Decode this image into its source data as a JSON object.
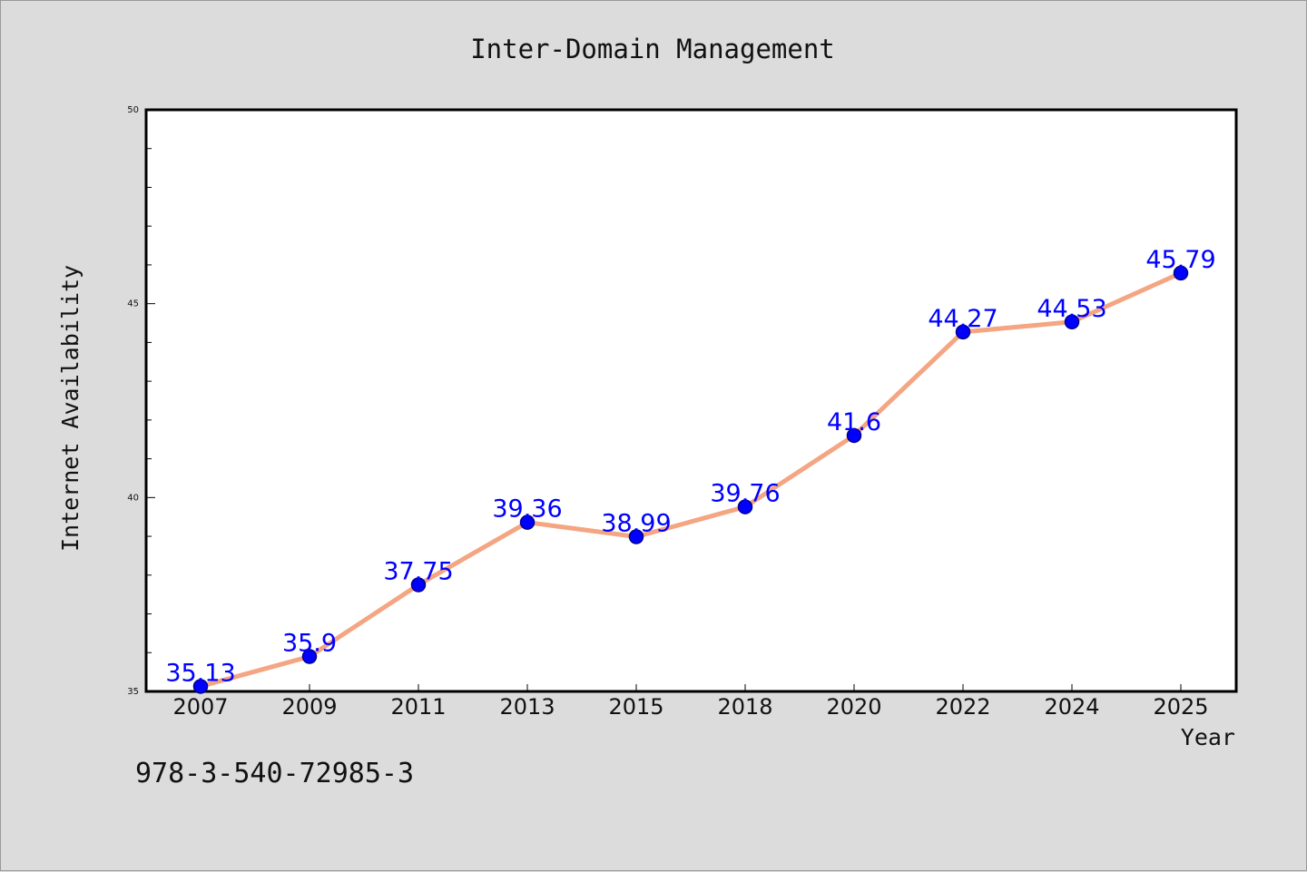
{
  "chart_data": {
    "type": "line",
    "title": "Inter-Domain Management",
    "xlabel": "Year",
    "ylabel": "Internet Availability",
    "categories": [
      "2007",
      "2009",
      "2011",
      "2013",
      "2015",
      "2018",
      "2020",
      "2022",
      "2024",
      "2025"
    ],
    "values": [
      35.13,
      35.9,
      37.75,
      39.36,
      38.99,
      39.76,
      41.6,
      44.27,
      44.53,
      45.79
    ],
    "value_labels": [
      "35.13",
      "35.9",
      "37.75",
      "39.36",
      "38.99",
      "39.76",
      "41.6",
      "44.27",
      "44.53",
      "45.79"
    ],
    "ylim": [
      35,
      50
    ],
    "yticks": [
      "35",
      "40",
      "45",
      "50"
    ],
    "grid": false,
    "legend": "none",
    "colors": {
      "line": "#f4a582",
      "marker": "#0000ff",
      "marker_edge": "#00008b",
      "label": "#0000ff"
    }
  },
  "footer": {
    "code": "978-3-540-72985-3"
  }
}
